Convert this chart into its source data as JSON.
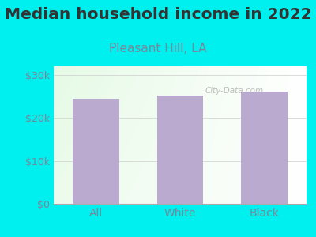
{
  "title": "Median household income in 2022",
  "subtitle": "Pleasant Hill, LA",
  "categories": [
    "All",
    "White",
    "Black"
  ],
  "values": [
    24500,
    25200,
    26200
  ],
  "bar_color": "#bbaad0",
  "background_color": "#00efef",
  "title_color": "#333333",
  "subtitle_color": "#778899",
  "tick_color": "#778899",
  "ylabel_ticks": [
    "$0",
    "$10k",
    "$20k",
    "$30k"
  ],
  "ytick_vals": [
    0,
    10000,
    20000,
    30000
  ],
  "ylim": [
    0,
    32000
  ],
  "title_fontsize": 14.5,
  "subtitle_fontsize": 11,
  "watermark": "City-Data.com"
}
